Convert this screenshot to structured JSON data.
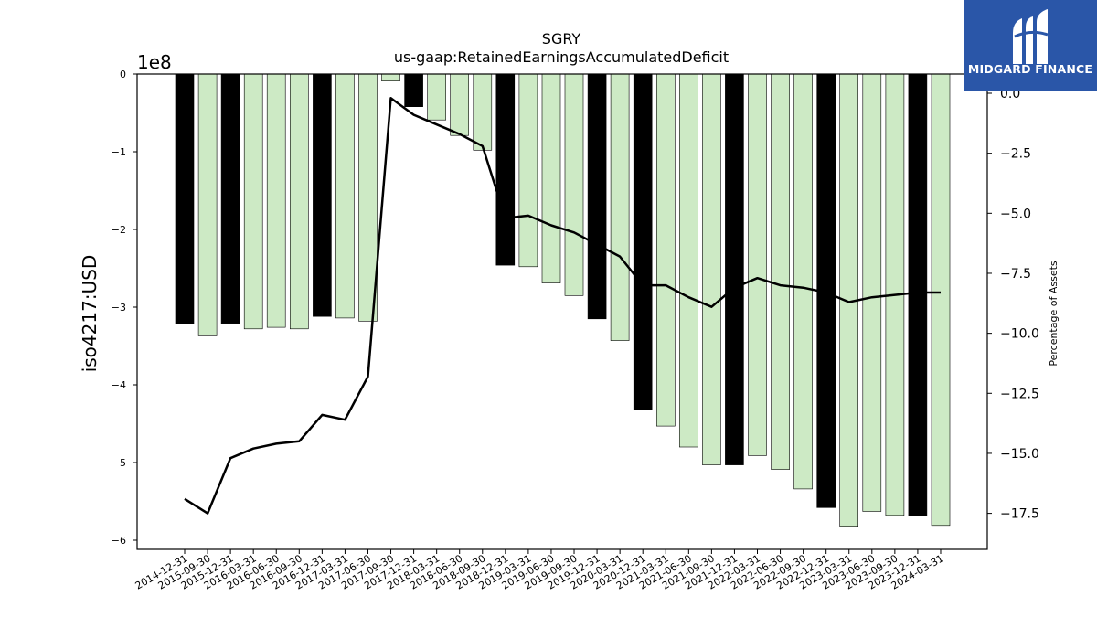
{
  "brand": {
    "name": "MIDGARD FINANCE",
    "bg_color": "#2a56a8"
  },
  "chart_data": {
    "type": "bar",
    "title": "SGRY",
    "subtitle": "us-gaap:RetainedEarningsAccumulatedDeficit",
    "ylabel": "iso4217:USD",
    "y2label": "Percentage of Assets",
    "y_multiplier_label": "1e8",
    "ylim": [
      -6.1,
      0
    ],
    "y_ticks": [
      0,
      -1,
      -2,
      -3,
      -4,
      -5,
      -6
    ],
    "y_tick_labels": [
      "0",
      "−1",
      "−2",
      "−3",
      "−4",
      "−5",
      "−6"
    ],
    "y2lim": [
      -19.0,
      0.8
    ],
    "y2_ticks": [
      0.0,
      -2.5,
      -5.0,
      -7.5,
      -10.0,
      -12.5,
      -15.0,
      -17.5
    ],
    "y2_tick_labels": [
      "0.0",
      "−2.5",
      "−5.0",
      "−7.5",
      "−10.0",
      "−12.5",
      "−15.0",
      "−17.5"
    ],
    "categories": [
      "2014-12-31",
      "2015-09-30",
      "2015-12-31",
      "2016-03-31",
      "2016-06-30",
      "2016-09-30",
      "2016-12-31",
      "2017-03-31",
      "2017-06-30",
      "2017-09-30",
      "2017-12-31",
      "2018-03-31",
      "2018-06-30",
      "2018-09-30",
      "2018-12-31",
      "2019-03-31",
      "2019-06-30",
      "2019-09-30",
      "2019-12-31",
      "2020-03-31",
      "2020-12-31",
      "2021-03-31",
      "2021-06-30",
      "2021-09-30",
      "2021-12-31",
      "2022-03-31",
      "2022-06-30",
      "2022-09-30",
      "2022-12-31",
      "2023-03-31",
      "2023-06-30",
      "2023-09-30",
      "2023-12-31",
      "2024-03-31"
    ],
    "bar_values": [
      -3.22,
      -3.37,
      -3.21,
      -3.28,
      -3.26,
      -3.28,
      -3.12,
      -3.14,
      -3.18,
      -0.09,
      -0.42,
      -0.59,
      -0.79,
      -0.98,
      -2.46,
      -2.48,
      -2.69,
      -2.85,
      -3.15,
      -3.43,
      -4.32,
      -4.53,
      -4.8,
      -5.03,
      -5.03,
      -4.91,
      -5.09,
      -5.34,
      -5.58,
      -5.82,
      -5.63,
      -5.68,
      -5.69,
      -5.81
    ],
    "bar_is_annual": [
      true,
      false,
      true,
      false,
      false,
      false,
      true,
      false,
      false,
      false,
      true,
      false,
      false,
      false,
      true,
      false,
      false,
      false,
      true,
      false,
      true,
      false,
      false,
      false,
      true,
      false,
      false,
      false,
      true,
      false,
      false,
      false,
      true,
      false
    ],
    "line_values": [
      -16.9,
      -17.5,
      -15.2,
      -14.8,
      -14.6,
      -14.5,
      -13.4,
      -13.6,
      -11.8,
      -0.2,
      -0.9,
      -1.3,
      -1.7,
      -2.2,
      -5.2,
      -5.1,
      -5.5,
      -5.8,
      -6.3,
      -6.8,
      -8.0,
      -8.0,
      -8.5,
      -8.9,
      -8.1,
      -7.7,
      -8.0,
      -8.1,
      -8.3,
      -8.7,
      -8.5,
      -8.4,
      -8.3,
      -8.3
    ],
    "colors": {
      "annual_bar": "#000000",
      "quarter_bar": "#cdeac5",
      "line": "#000000"
    }
  }
}
